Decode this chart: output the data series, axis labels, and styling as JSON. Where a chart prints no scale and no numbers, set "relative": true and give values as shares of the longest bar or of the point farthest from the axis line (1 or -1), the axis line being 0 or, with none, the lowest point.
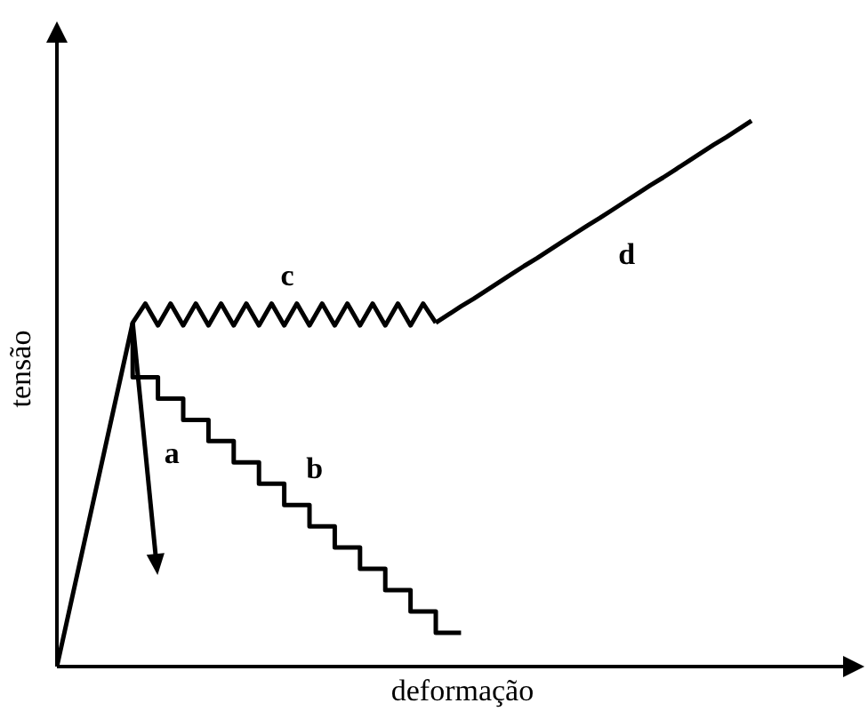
{
  "chart_data": {
    "type": "line",
    "xlabel": "deformação",
    "ylabel": "tensão",
    "relative": true,
    "categories": [
      null,
      null,
      null,
      null,
      null,
      null,
      null,
      null,
      null,
      null,
      null,
      null,
      null,
      null,
      null,
      null,
      null,
      null,
      null,
      null,
      null,
      null,
      null,
      null,
      null,
      null,
      null,
      null,
      null,
      null,
      null,
      null,
      null,
      null,
      null,
      null,
      null,
      null,
      null,
      null,
      null,
      null,
      null,
      null,
      null,
      null,
      null,
      null,
      null,
      null,
      null,
      null,
      null,
      null,
      null,
      null
    ],
    "annotations": [
      "a"
    ],
    "series": [
      {
        "name": "c",
        "color": "#000000",
        "values": [
          0,
          0.105,
          0.21,
          0.315,
          0.42,
          0.525,
          0.63,
          0.665,
          0.625,
          0.665,
          0.625,
          0.665,
          0.625,
          0.665,
          0.625,
          0.665,
          0.625,
          0.665,
          0.625,
          0.665,
          0.625,
          0.665,
          0.625,
          0.665,
          0.625,
          0.665,
          0.625,
          0.665,
          0.625,
          0.665,
          0.63,
          null,
          null,
          null,
          null,
          null,
          null,
          null,
          null,
          null,
          null,
          null,
          null,
          null,
          null,
          null,
          null,
          null,
          null,
          null,
          null,
          null,
          null,
          null,
          null,
          null
        ]
      },
      {
        "name": "b",
        "color": "#000000",
        "type": "step",
        "values": [
          null,
          null,
          null,
          null,
          null,
          null,
          0.63,
          0.53,
          0.53,
          0.491,
          0.491,
          0.452,
          0.452,
          0.413,
          0.413,
          0.374,
          0.374,
          0.335,
          0.335,
          0.296,
          0.296,
          0.257,
          0.257,
          0.218,
          0.218,
          0.179,
          0.179,
          0.14,
          0.14,
          0.101,
          0.101,
          0.062,
          0.062,
          null,
          null,
          null,
          null,
          null,
          null,
          null,
          null,
          null,
          null,
          null,
          null,
          null,
          null,
          null,
          null,
          null,
          null,
          null,
          null,
          null,
          null,
          null
        ]
      },
      {
        "name": "d",
        "color": "#000000",
        "values": [
          null,
          null,
          null,
          null,
          null,
          null,
          null,
          null,
          null,
          null,
          null,
          null,
          null,
          null,
          null,
          null,
          null,
          null,
          null,
          null,
          null,
          null,
          null,
          null,
          null,
          null,
          null,
          null,
          null,
          null,
          0.63,
          0.645,
          0.66,
          0.674,
          0.689,
          0.704,
          0.719,
          0.734,
          0.748,
          0.763,
          0.778,
          0.793,
          0.808,
          0.822,
          0.837,
          0.852,
          0.867,
          0.882,
          0.896,
          0.911,
          0.926,
          0.941,
          0.956,
          0.97,
          0.985,
          1
        ]
      }
    ]
  }
}
